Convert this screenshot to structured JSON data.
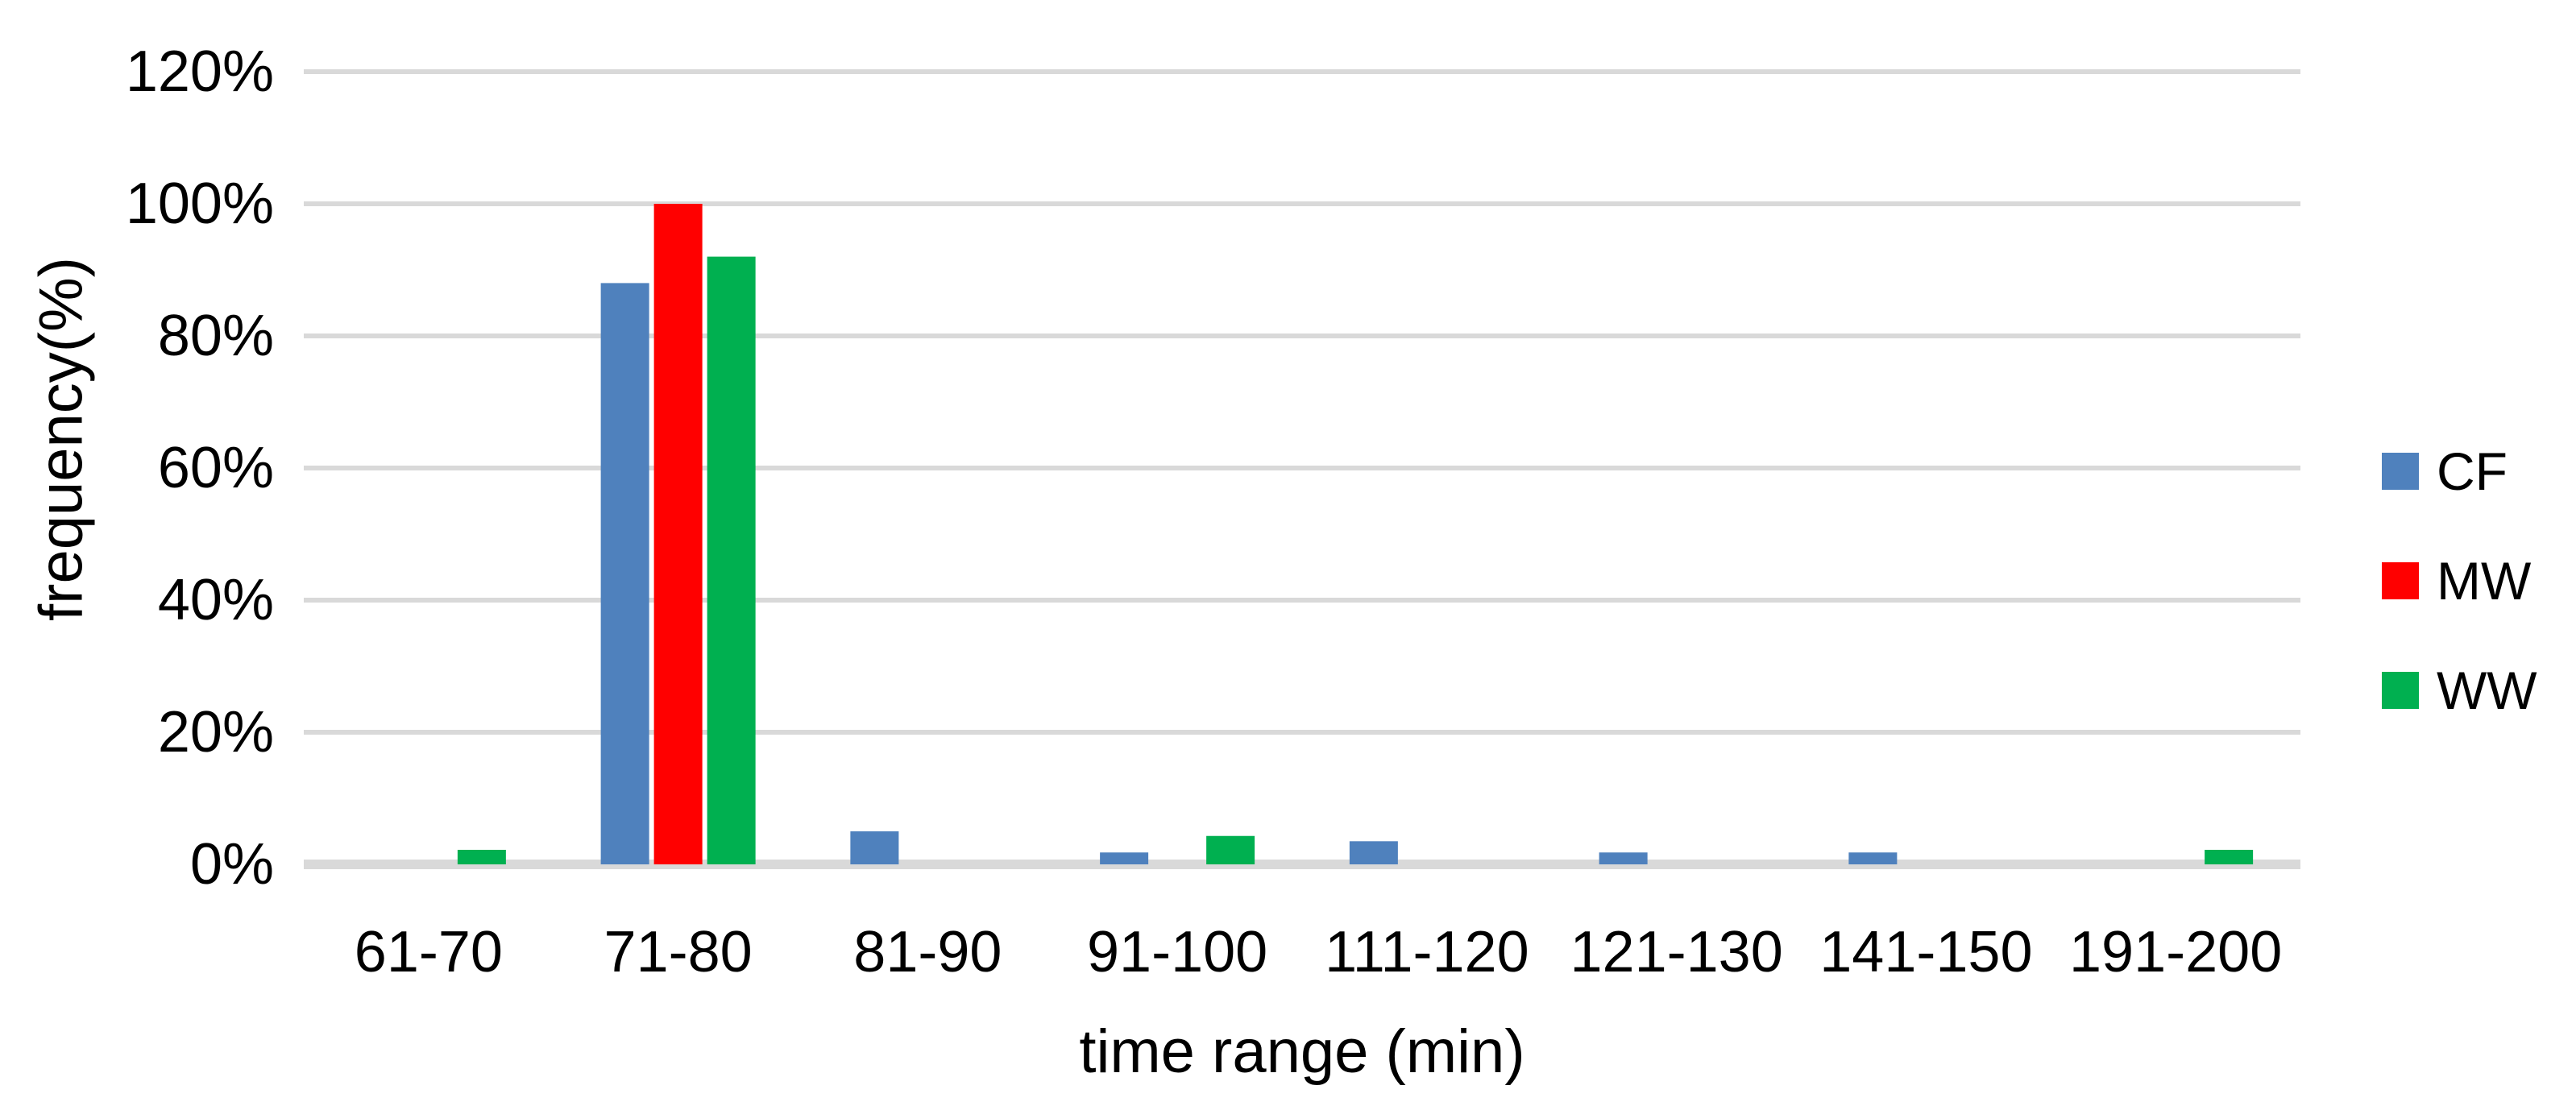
{
  "chart_data": {
    "type": "bar",
    "title": "",
    "xlabel": "time range (min)",
    "ylabel": "frequency(%)",
    "categories": [
      "61-70",
      "71-80",
      "81-90",
      "91-100",
      "111-120",
      "121-130",
      "141-150",
      "191-200"
    ],
    "series": [
      {
        "name": "CF",
        "color": "#4F81BD",
        "values": [
          0,
          88,
          5,
          1.8,
          3.5,
          1.8,
          1.8,
          0
        ]
      },
      {
        "name": "MW",
        "color": "#FF0000",
        "values": [
          0,
          100,
          0,
          0,
          0,
          0,
          0,
          0
        ]
      },
      {
        "name": "WW",
        "color": "#00B050",
        "values": [
          2.2,
          92,
          0,
          4.3,
          0,
          0,
          0,
          2.2
        ]
      }
    ],
    "y_ticks": [
      "0%",
      "20%",
      "40%",
      "60%",
      "80%",
      "100%",
      "120%"
    ],
    "ylim": [
      0,
      120
    ],
    "y_tick_step": 20,
    "grid": true,
    "legend_position": "right",
    "gridline_color": "#D9D9D9",
    "axis_line_color": "#D9D9D9",
    "text_color": "#000000",
    "background_color": "#FFFFFF"
  }
}
